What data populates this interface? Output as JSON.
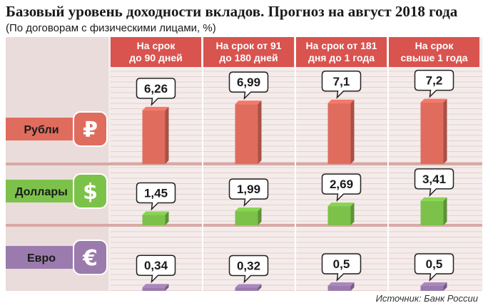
{
  "title": "Базовый уровень доходности вкладов. Прогноз на август 2018 года",
  "subtitle": "(По договорам с физическими лицами, %)",
  "source": "Источник: Банк России",
  "colors": {
    "header": "#d9534f",
    "rub": "#e06c5e",
    "usd": "#7cc24a",
    "eur": "#9b7bad",
    "panel": "#f3eceb",
    "grid": "#e3c6c3"
  },
  "chart_data": {
    "type": "bar",
    "categories": [
      "На срок до 90 дней",
      "На срок от 91 до 180 дней",
      "На срок от 181 дня до 1 года",
      "На срок свыше 1 года"
    ],
    "category_lines": [
      [
        "На срок",
        "до 90 дней"
      ],
      [
        "На срок от 91",
        "до 180 дней"
      ],
      [
        "На срок от 181",
        "дня до 1 года"
      ],
      [
        "На срок",
        "свыше 1 года"
      ]
    ],
    "series": [
      {
        "name": "Рубли",
        "symbol": "₽",
        "values": [
          6.26,
          6.99,
          7.1,
          7.2
        ],
        "labels": [
          "6,26",
          "6,99",
          "7,1",
          "7,2"
        ]
      },
      {
        "name": "Доллары",
        "symbol": "$",
        "values": [
          1.45,
          1.99,
          2.69,
          3.41
        ],
        "labels": [
          "1,45",
          "1,99",
          "2,69",
          "3,41"
        ]
      },
      {
        "name": "Евро",
        "symbol": "€",
        "values": [
          0.34,
          0.32,
          0.5,
          0.5
        ],
        "labels": [
          "0,34",
          "0,32",
          "0,5",
          "0,5"
        ]
      }
    ]
  }
}
